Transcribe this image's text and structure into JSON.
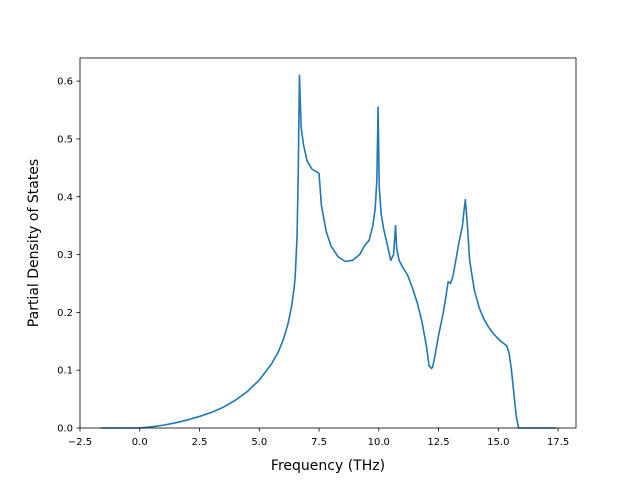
{
  "chart_data": {
    "type": "line",
    "title": "",
    "xlabel": "Frequency (THz)",
    "ylabel": "Partial Density of States",
    "xlim": [
      -2.5,
      18.25
    ],
    "ylim": [
      0.0,
      0.64
    ],
    "xticks": [
      -2.5,
      0.0,
      2.5,
      5.0,
      7.5,
      10.0,
      12.5,
      15.0,
      17.5
    ],
    "xtick_labels": [
      "−2.5",
      "0.0",
      "2.5",
      "5.0",
      "7.5",
      "10.0",
      "12.5",
      "15.0",
      "17.5"
    ],
    "yticks": [
      0.0,
      0.1,
      0.2,
      0.3,
      0.4,
      0.5,
      0.6
    ],
    "ytick_labels": [
      "0.0",
      "0.1",
      "0.2",
      "0.3",
      "0.4",
      "0.5",
      "0.6"
    ],
    "grid": false,
    "legend": "none",
    "series": [
      {
        "color": "#1f77b4",
        "x": [
          -1.6,
          -1.0,
          0.0,
          0.5,
          1.0,
          1.5,
          2.0,
          2.5,
          3.0,
          3.5,
          4.0,
          4.5,
          5.0,
          5.5,
          5.8,
          6.0,
          6.2,
          6.35,
          6.45,
          6.5,
          6.58,
          6.63,
          6.68,
          6.75,
          6.85,
          7.0,
          7.2,
          7.4,
          7.5,
          7.6,
          7.8,
          8.0,
          8.3,
          8.6,
          8.9,
          9.2,
          9.4,
          9.6,
          9.75,
          9.85,
          9.92,
          9.97,
          10.02,
          10.1,
          10.2,
          10.35,
          10.5,
          10.62,
          10.7,
          10.75,
          10.85,
          11.0,
          11.2,
          11.4,
          11.6,
          11.8,
          12.0,
          12.1,
          12.2,
          12.25,
          12.35,
          12.5,
          12.7,
          12.8,
          12.9,
          13.0,
          13.1,
          13.2,
          13.35,
          13.5,
          13.55,
          13.62,
          13.7,
          13.8,
          14.0,
          14.2,
          14.4,
          14.6,
          14.8,
          15.0,
          15.2,
          15.35,
          15.45,
          15.55,
          15.65,
          15.75,
          15.85,
          16.0,
          16.5,
          17.4
        ],
        "y": [
          0.0,
          0.0,
          0.0,
          0.002,
          0.005,
          0.009,
          0.014,
          0.02,
          0.027,
          0.036,
          0.048,
          0.063,
          0.083,
          0.11,
          0.132,
          0.152,
          0.18,
          0.21,
          0.24,
          0.26,
          0.33,
          0.44,
          0.61,
          0.52,
          0.49,
          0.462,
          0.448,
          0.443,
          0.44,
          0.385,
          0.34,
          0.315,
          0.296,
          0.288,
          0.29,
          0.3,
          0.315,
          0.325,
          0.35,
          0.38,
          0.43,
          0.555,
          0.415,
          0.37,
          0.345,
          0.318,
          0.29,
          0.3,
          0.35,
          0.31,
          0.29,
          0.278,
          0.265,
          0.243,
          0.218,
          0.185,
          0.14,
          0.108,
          0.103,
          0.105,
          0.125,
          0.16,
          0.2,
          0.225,
          0.253,
          0.25,
          0.262,
          0.285,
          0.32,
          0.35,
          0.37,
          0.395,
          0.355,
          0.29,
          0.238,
          0.208,
          0.188,
          0.174,
          0.163,
          0.154,
          0.147,
          0.142,
          0.13,
          0.1,
          0.06,
          0.02,
          0.0,
          0.0,
          0.0,
          0.0
        ]
      }
    ]
  }
}
